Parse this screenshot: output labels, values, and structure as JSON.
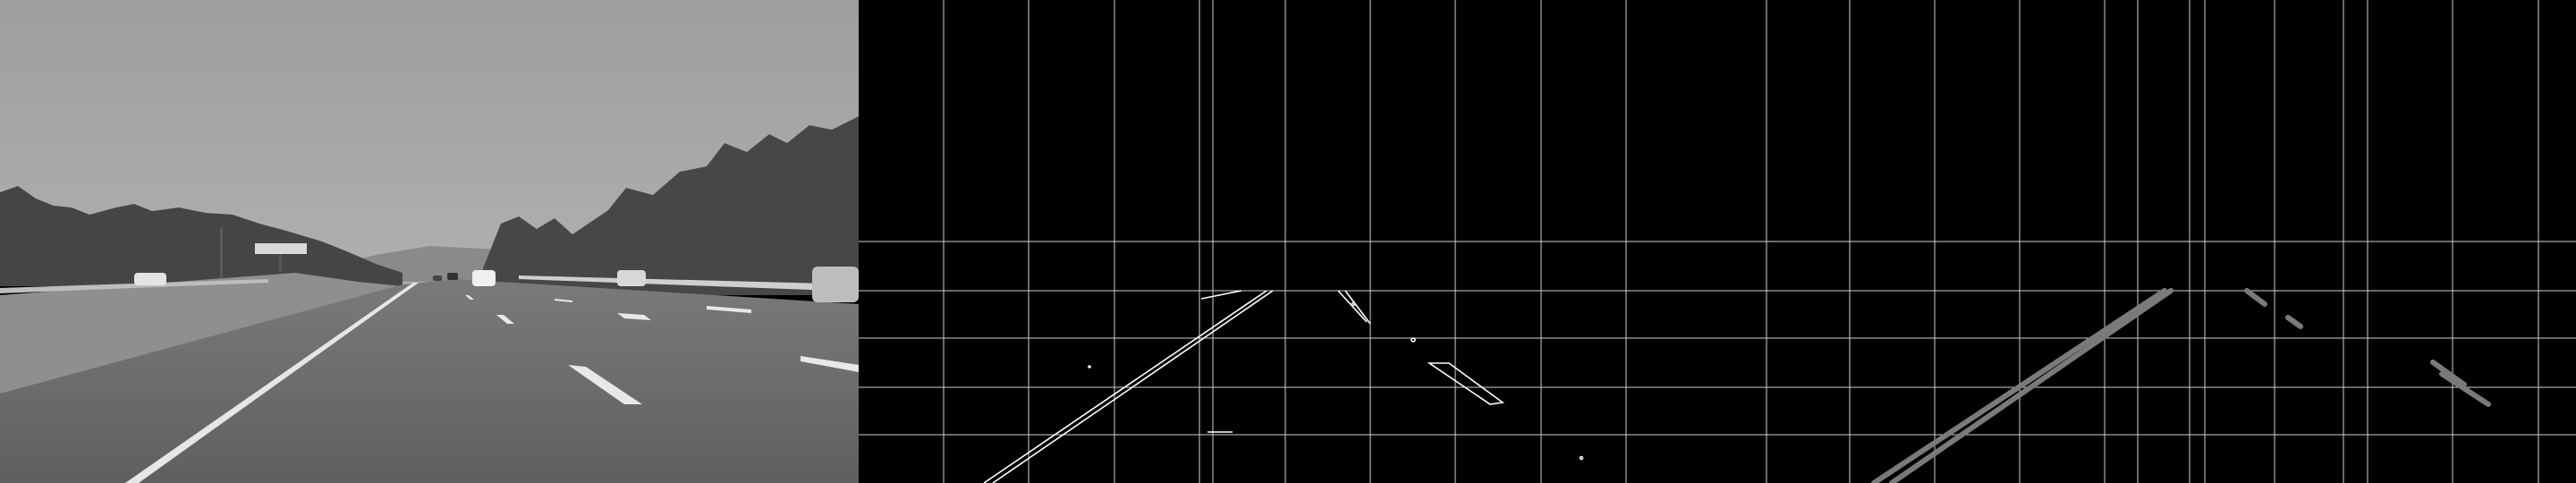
{
  "panels": [
    {
      "name": "grayscale-road-photo"
    },
    {
      "name": "canny-edge-output"
    },
    {
      "name": "hough-lane-lines-output"
    }
  ],
  "colors": {
    "sky": "#a5a5a5",
    "road": "#6e6e6e",
    "trees": "#4a4a4a",
    "edge_lines": "#ffffff",
    "hough_lines": "#7a7a7a",
    "grid": "#cfcfcf",
    "background": "#000000"
  }
}
